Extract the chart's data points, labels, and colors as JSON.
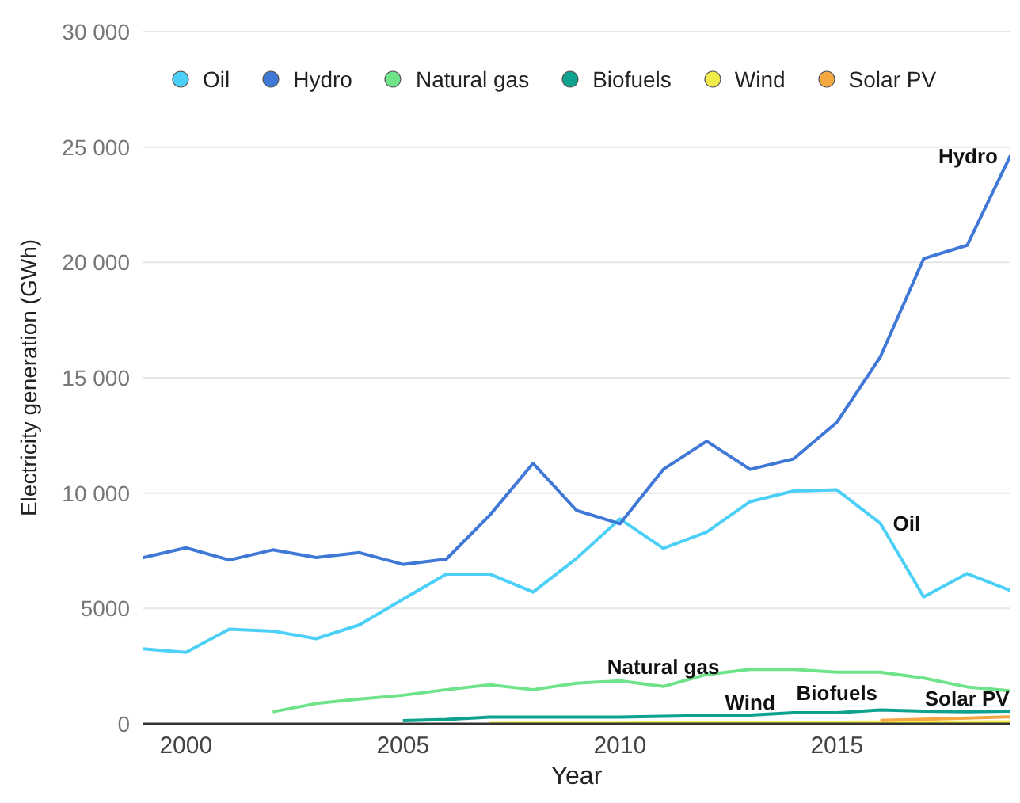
{
  "chart_data": {
    "type": "line",
    "x": [
      1999,
      2000,
      2001,
      2002,
      2003,
      2004,
      2005,
      2006,
      2007,
      2008,
      2009,
      2010,
      2011,
      2012,
      2013,
      2014,
      2015,
      2016,
      2017,
      2018,
      2019
    ],
    "series": [
      {
        "name": "Oil",
        "color": "#4dd0f7",
        "values": [
          3250,
          3100,
          4100,
          4020,
          3690,
          4290,
          5400,
          6490,
          6490,
          5710,
          7170,
          8880,
          7610,
          8310,
          9630,
          10090,
          10140,
          8690,
          5500,
          6510,
          5780
        ]
      },
      {
        "name": "Hydro",
        "color": "#3f78d6",
        "values": [
          7200,
          7630,
          7100,
          7540,
          7210,
          7420,
          6910,
          7140,
          9040,
          11290,
          9250,
          8670,
          11030,
          12250,
          11030,
          11480,
          13070,
          15900,
          20160,
          20740,
          24630
        ]
      },
      {
        "name": "Natural gas",
        "color": "#6ee38a",
        "values": [
          null,
          null,
          null,
          520,
          880,
          1070,
          1240,
          1480,
          1690,
          1480,
          1760,
          1860,
          1620,
          2140,
          2360,
          2360,
          2240,
          2240,
          1980,
          1600,
          1430
        ]
      },
      {
        "name": "Biofuels",
        "color": "#0fa38f",
        "values": [
          null,
          null,
          null,
          null,
          null,
          null,
          140,
          190,
          290,
          290,
          290,
          290,
          330,
          360,
          380,
          480,
          480,
          600,
          550,
          520,
          550
        ]
      },
      {
        "name": "Wind",
        "color": "#f2ec4a",
        "values": [
          null,
          null,
          null,
          null,
          null,
          null,
          null,
          null,
          20,
          30,
          30,
          30,
          40,
          50,
          60,
          70,
          70,
          80,
          80,
          80,
          90
        ]
      },
      {
        "name": "Solar PV",
        "color": "#f5a742",
        "values": [
          null,
          null,
          null,
          null,
          null,
          null,
          null,
          null,
          null,
          null,
          null,
          null,
          null,
          null,
          null,
          null,
          null,
          150,
          200,
          250,
          300
        ]
      }
    ],
    "xlabel": "Year",
    "ylabel": "Electricity generation (GWh)",
    "xlim": [
      1999,
      2019
    ],
    "xticks": [
      2000,
      2005,
      2010,
      2015
    ],
    "ylim": [
      0,
      30000
    ],
    "yticks": [
      0,
      5000,
      {
        "value": 10000,
        "label": "10 000"
      },
      {
        "value": 15000,
        "label": "15 000"
      },
      {
        "value": 20000,
        "label": "20 000"
      },
      {
        "value": 25000,
        "label": "25 000"
      },
      {
        "value": 30000,
        "label": "30 000"
      }
    ],
    "annotations": [
      {
        "text": "Hydro",
        "x": 2019,
        "y": 24630
      },
      {
        "text": "Oil",
        "x": 2016,
        "y": 8690
      },
      {
        "text": "Natural gas",
        "x": 2011,
        "y": 1620
      },
      {
        "text": "Wind",
        "x": 2013,
        "y": 60
      },
      {
        "text": "Biofuels",
        "x": 2015,
        "y": 480
      },
      {
        "text": "Solar PV",
        "x": 2018,
        "y": 250
      }
    ],
    "grid": "y",
    "legend": "top",
    "marker": "none",
    "line_style": "solid"
  }
}
